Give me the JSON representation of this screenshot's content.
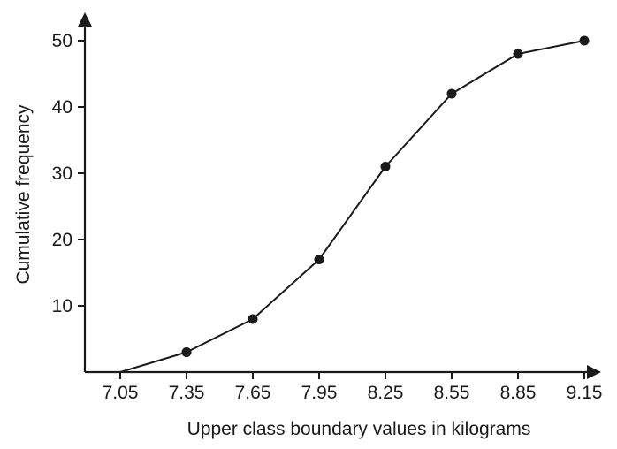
{
  "chart_data": {
    "type": "line",
    "title": "",
    "xlabel": "Upper class boundary values in kilograms",
    "ylabel": "Cumulative frequency",
    "x_tick_labels": [
      "7.05",
      "7.35",
      "7.65",
      "7.95",
      "8.25",
      "8.55",
      "8.85",
      "9.15"
    ],
    "y_tick_labels": [
      "10",
      "20",
      "30",
      "40",
      "50"
    ],
    "xlim": [
      6.92,
      9.3
    ],
    "ylim": [
      0,
      55
    ],
    "grid": false,
    "legend": "none",
    "series": [
      {
        "x": [
          7.05,
          7.35,
          7.65,
          7.95,
          8.25,
          8.55,
          8.85,
          9.15
        ],
        "y": [
          0,
          3,
          8,
          17,
          31,
          42,
          48,
          50
        ],
        "markers": [
          false,
          true,
          true,
          true,
          true,
          true,
          true,
          true
        ]
      }
    ],
    "colors": {
      "line": "#1a1a1a",
      "axis": "#1a1a1a"
    }
  }
}
